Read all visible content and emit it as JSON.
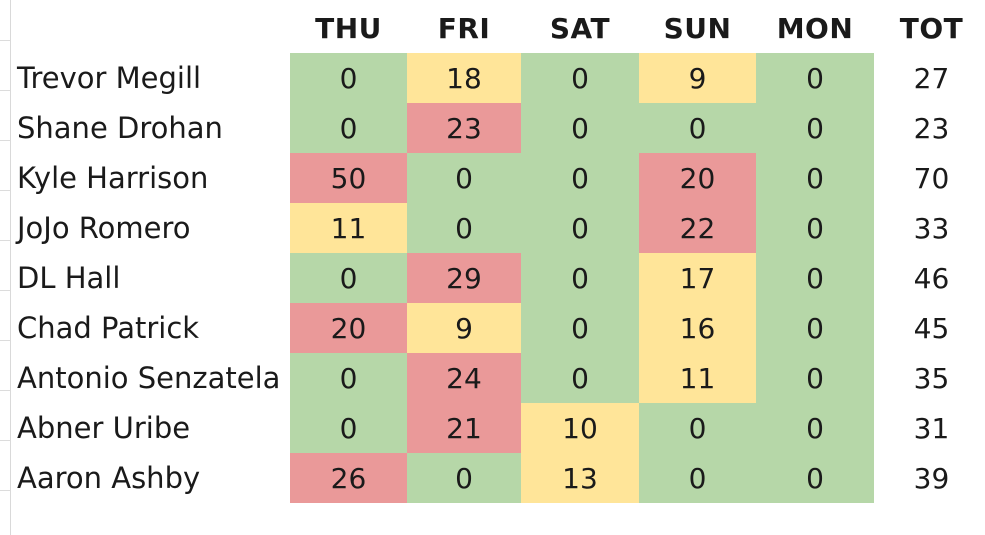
{
  "colors": {
    "good": "#b6d7a8",
    "mid": "#ffe599",
    "bad": "#ea9999"
  },
  "table": {
    "corner": "",
    "headers": [
      "THU",
      "FRI",
      "SAT",
      "SUN",
      "MON",
      "TOT"
    ],
    "rows": [
      {
        "name": "Trevor Megill",
        "values": [
          "0",
          "18",
          "0",
          "9",
          "0"
        ],
        "levels": [
          "good",
          "mid",
          "good",
          "mid",
          "good"
        ],
        "total": "27"
      },
      {
        "name": "Shane Drohan",
        "values": [
          "0",
          "23",
          "0",
          "0",
          "0"
        ],
        "levels": [
          "good",
          "bad",
          "good",
          "good",
          "good"
        ],
        "total": "23"
      },
      {
        "name": "Kyle Harrison",
        "values": [
          "50",
          "0",
          "0",
          "20",
          "0"
        ],
        "levels": [
          "bad",
          "good",
          "good",
          "bad",
          "good"
        ],
        "total": "70"
      },
      {
        "name": "JoJo Romero",
        "values": [
          "11",
          "0",
          "0",
          "22",
          "0"
        ],
        "levels": [
          "mid",
          "good",
          "good",
          "bad",
          "good"
        ],
        "total": "33"
      },
      {
        "name": "DL Hall",
        "values": [
          "0",
          "29",
          "0",
          "17",
          "0"
        ],
        "levels": [
          "good",
          "bad",
          "good",
          "mid",
          "good"
        ],
        "total": "46"
      },
      {
        "name": "Chad Patrick",
        "values": [
          "20",
          "9",
          "0",
          "16",
          "0"
        ],
        "levels": [
          "bad",
          "mid",
          "good",
          "mid",
          "good"
        ],
        "total": "45"
      },
      {
        "name": "Antonio Senzatela",
        "values": [
          "0",
          "24",
          "0",
          "11",
          "0"
        ],
        "levels": [
          "good",
          "bad",
          "good",
          "mid",
          "good"
        ],
        "total": "35"
      },
      {
        "name": "Abner Uribe",
        "values": [
          "0",
          "21",
          "10",
          "0",
          "0"
        ],
        "levels": [
          "good",
          "bad",
          "mid",
          "good",
          "good"
        ],
        "total": "31"
      },
      {
        "name": "Aaron Ashby",
        "values": [
          "26",
          "0",
          "13",
          "0",
          "0"
        ],
        "levels": [
          "bad",
          "good",
          "mid",
          "good",
          "good"
        ],
        "total": "39"
      }
    ]
  }
}
